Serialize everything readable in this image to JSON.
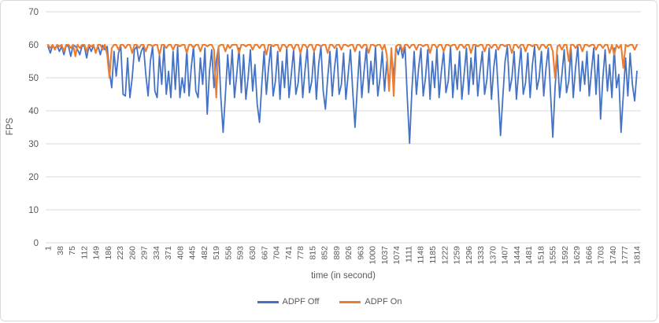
{
  "chart_data": {
    "type": "line",
    "title": "",
    "xlabel": "time (in second)",
    "ylabel": "FPS",
    "ylim": [
      0,
      70
    ],
    "y_ticks": [
      0,
      10,
      20,
      30,
      40,
      50,
      60,
      70
    ],
    "x_domain": [
      1,
      1814
    ],
    "x_tick_labels": [
      "1",
      "38",
      "75",
      "112",
      "149",
      "186",
      "223",
      "260",
      "297",
      "334",
      "371",
      "408",
      "445",
      "482",
      "519",
      "556",
      "593",
      "630",
      "667",
      "704",
      "741",
      "778",
      "815",
      "852",
      "889",
      "926",
      "963",
      "1000",
      "1037",
      "1074",
      "1111",
      "1148",
      "1185",
      "1222",
      "1259",
      "1296",
      "1333",
      "1370",
      "1407",
      "1444",
      "1481",
      "1518",
      "1555",
      "1592",
      "1629",
      "1666",
      "1703",
      "1740",
      "1777",
      "1814"
    ],
    "grid": "horizontal",
    "legend_position": "bottom",
    "sampling": {
      "x_start": 1,
      "x_step": 7,
      "points": 260
    },
    "series": [
      {
        "name": "ADPF Off",
        "color": "#4472C4",
        "values": [
          59.5,
          57.5,
          59.8,
          59,
          59.8,
          58,
          59.5,
          57,
          59.8,
          59.5,
          56.5,
          59.8,
          59.6,
          58.5,
          57,
          59.8,
          59.5,
          56,
          59.7,
          58,
          59.8,
          57.5,
          59.6,
          57,
          59.8,
          58.5,
          59.5,
          52,
          47,
          58,
          50.5,
          57.5,
          59.5,
          45,
          44.5,
          56,
          44,
          50,
          58.5,
          59.5,
          55,
          58,
          59.5,
          51,
          44.5,
          55,
          59.5,
          46,
          44,
          57,
          48,
          59.5,
          45,
          52,
          44,
          58,
          46.5,
          59.5,
          44,
          50,
          45.5,
          58.5,
          44.5,
          53,
          59.5,
          46,
          44,
          56,
          48,
          59,
          39,
          52,
          58.5,
          47,
          55,
          59.5,
          44,
          33.5,
          45,
          57,
          48,
          58.5,
          44,
          51,
          59,
          45.5,
          57,
          43.5,
          50,
          58.5,
          46,
          54,
          42,
          36.5,
          48,
          58,
          45,
          53,
          59.5,
          44.5,
          49,
          58,
          43.5,
          55,
          47,
          59,
          44,
          51,
          58.5,
          45,
          48.5,
          57.5,
          44,
          52,
          59,
          45.5,
          49,
          58,
          43.5,
          54,
          59.5,
          46,
          40.5,
          50,
          58,
          44.5,
          53,
          59,
          45,
          48,
          57.5,
          43.5,
          51,
          58.5,
          46,
          35,
          47,
          58,
          44,
          52,
          59,
          45.5,
          55,
          48,
          59.5,
          44.5,
          50,
          58,
          46,
          55,
          47,
          58,
          50,
          59.5,
          57,
          59.8,
          56,
          59.5,
          44,
          30.2,
          46,
          58,
          45,
          53,
          59,
          44.5,
          50,
          58.5,
          43.5,
          55,
          47,
          59,
          44,
          52,
          58,
          45.5,
          49,
          59.5,
          44,
          54,
          46.5,
          58,
          43.5,
          51,
          59,
          45,
          56,
          48,
          59.5,
          44.5,
          52,
          58,
          45,
          49.5,
          59,
          43.5,
          53,
          58.5,
          46,
          32.5,
          44,
          55,
          59.5,
          46,
          50,
          58,
          43.5,
          52,
          59,
          45,
          48.5,
          57.5,
          44,
          54,
          59.5,
          46.5,
          50,
          58,
          44.5,
          53,
          59,
          45,
          32,
          47,
          57,
          44,
          51,
          58.5,
          45.5,
          49,
          59,
          44,
          53,
          59.5,
          46,
          55,
          48,
          58,
          44.5,
          52,
          59,
          45,
          57,
          37.5,
          50,
          58.5,
          46,
          54,
          44,
          59,
          47,
          51,
          33.5,
          45,
          56,
          44.5,
          57.5,
          48,
          43,
          52
        ]
      },
      {
        "name": "ADPF On",
        "color": "#ED7D31",
        "values": [
          60,
          59,
          60,
          58.5,
          60,
          59.5,
          60,
          58,
          60,
          60,
          59,
          60,
          56.5,
          60,
          59,
          60,
          60,
          58,
          60,
          59.5,
          60,
          57.5,
          60,
          60,
          58.5,
          60,
          57,
          50,
          59,
          60,
          60,
          58.5,
          60,
          60,
          59,
          60,
          60,
          57.5,
          60,
          60,
          59,
          60,
          60,
          58,
          60,
          60,
          59.5,
          60,
          60,
          57,
          60,
          60,
          59,
          60,
          60,
          58.5,
          60,
          60,
          59.5,
          60,
          60,
          57.5,
          60,
          60,
          59,
          60,
          60,
          58,
          60,
          60,
          59.5,
          60,
          60,
          58.5,
          44,
          59.5,
          60,
          60,
          58,
          60,
          59,
          60,
          60,
          60,
          57.5,
          60,
          60,
          59.5,
          60,
          60,
          58.5,
          60,
          60,
          59,
          60,
          60,
          57,
          60,
          60,
          59.5,
          60,
          60,
          58,
          60,
          60,
          59,
          60,
          60,
          58.5,
          60,
          60,
          57.5,
          60,
          60,
          59,
          60,
          60,
          58,
          60,
          60,
          59.5,
          60,
          60,
          57.5,
          60,
          60,
          59,
          60,
          60,
          58.5,
          60,
          60,
          59.5,
          60,
          60,
          58,
          60,
          60,
          59,
          60,
          60,
          57.5,
          60,
          60,
          59.5,
          60,
          60,
          58.5,
          60,
          57,
          46,
          59,
          44.5,
          59.5,
          60,
          60,
          58,
          60,
          60,
          59,
          60,
          60,
          58.5,
          60,
          60,
          59.5,
          60,
          60,
          57.5,
          60,
          60,
          59,
          60,
          60,
          58,
          60,
          60,
          59.5,
          60,
          60,
          58.5,
          60,
          60,
          59,
          60,
          60,
          57.5,
          60,
          60,
          59.5,
          60,
          60,
          58,
          60,
          60,
          59,
          60,
          60,
          58.5,
          60,
          60,
          59.5,
          60,
          60,
          57.5,
          60,
          60,
          59,
          60,
          60,
          58,
          60,
          60,
          59.5,
          60,
          60,
          58.5,
          60,
          60,
          59,
          60,
          60,
          58,
          50,
          59.5,
          60,
          58.5,
          60,
          60,
          55,
          60,
          60,
          59,
          60,
          60,
          58,
          60,
          60,
          59.5,
          60,
          60,
          58.5,
          60,
          60,
          59,
          60,
          60,
          57.5,
          60,
          57,
          60,
          59,
          60,
          53,
          60,
          59.5,
          60,
          60,
          58.5,
          60
        ]
      }
    ]
  },
  "colors": {
    "background": "#FFFFFF",
    "border": "#D9D9D9",
    "grid": "#D9D9D9",
    "axis_text": "#595959"
  }
}
